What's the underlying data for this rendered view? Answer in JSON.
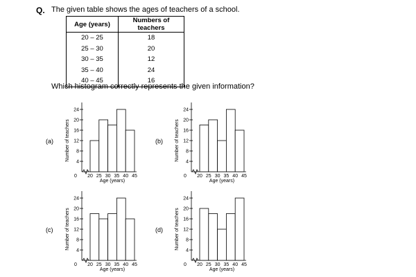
{
  "question": {
    "label": "Q.",
    "text": "The given table shows the ages of teachers of a school.",
    "prompt": "Which histogram correctly represents the given information?"
  },
  "table": {
    "headers": [
      "Age (years)",
      "Numbers of teachers"
    ],
    "rows": [
      [
        "20 – 25",
        "18"
      ],
      [
        "25 – 30",
        "20"
      ],
      [
        "30 – 35",
        "12"
      ],
      [
        "35 – 40",
        "24"
      ],
      [
        "40 – 45",
        "16"
      ]
    ]
  },
  "chart_data": [
    {
      "type": "bar",
      "label": "(a)",
      "categories": [
        "20–25",
        "25–30",
        "30–35",
        "35–40",
        "40–45"
      ],
      "values": [
        12,
        20,
        18,
        24,
        16
      ],
      "ylabel": "Number of teachers",
      "xlabel": "Age (years)",
      "x_ticks": [
        "20",
        "25",
        "30",
        "35",
        "40",
        "45"
      ],
      "y_ticks": [
        4,
        8,
        12,
        16,
        20,
        24
      ],
      "origin": "0",
      "ylim": [
        0,
        24
      ]
    },
    {
      "type": "bar",
      "label": "(b)",
      "categories": [
        "20–25",
        "25–30",
        "30–35",
        "35–40",
        "40–45"
      ],
      "values": [
        18,
        20,
        12,
        24,
        16
      ],
      "ylabel": "Number of teachers",
      "xlabel": "Age (years)",
      "x_ticks": [
        "20",
        "25",
        "30",
        "35",
        "40",
        "45"
      ],
      "y_ticks": [
        4,
        8,
        12,
        16,
        20,
        24
      ],
      "origin": "0",
      "ylim": [
        0,
        24
      ]
    },
    {
      "type": "bar",
      "label": "(c)",
      "categories": [
        "20–25",
        "25–30",
        "30–35",
        "35–40",
        "40–45"
      ],
      "values": [
        18,
        16,
        18,
        24,
        16
      ],
      "ylabel": "Number of teachers",
      "xlabel": "Age (years)",
      "x_ticks": [
        "20",
        "25",
        "30",
        "35",
        "40",
        "45"
      ],
      "y_ticks": [
        4,
        8,
        12,
        16,
        20,
        24
      ],
      "origin": "0",
      "ylim": [
        0,
        24
      ]
    },
    {
      "type": "bar",
      "label": "(d)",
      "categories": [
        "20–25",
        "25–30",
        "30–35",
        "35–40",
        "40–45"
      ],
      "values": [
        20,
        18,
        12,
        18,
        24
      ],
      "ylabel": "Number of teachers",
      "xlabel": "Age (years)",
      "x_ticks": [
        "20",
        "25",
        "30",
        "35",
        "40",
        "45"
      ],
      "y_ticks": [
        4,
        8,
        12,
        16,
        20,
        24
      ],
      "origin": "0",
      "ylim": [
        0,
        24
      ]
    }
  ]
}
